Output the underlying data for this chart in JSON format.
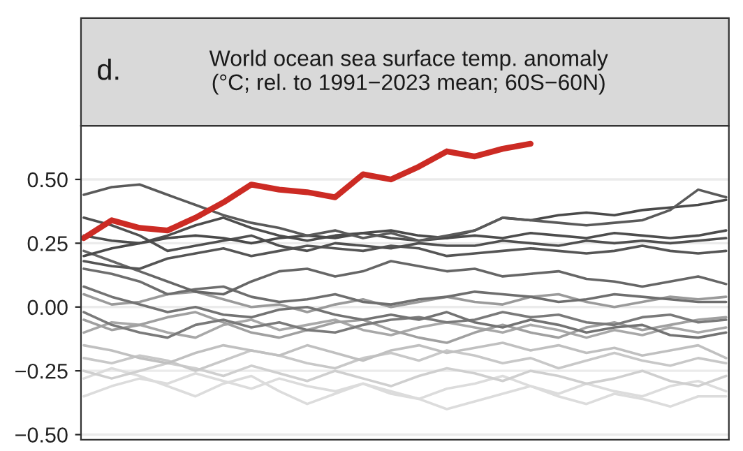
{
  "chart_data": {
    "type": "line",
    "title": "World ocean sea surface temp. anomaly\n(°C; rel. to 1991−2023 mean; 60S−60N)",
    "annotations": [
      "d."
    ],
    "categories": [
      null,
      null,
      null,
      null,
      null,
      null,
      null,
      null,
      null,
      null,
      null,
      null,
      null,
      null,
      null,
      null,
      null,
      null,
      null,
      null,
      null,
      null,
      null,
      null
    ],
    "ylim": [
      -0.52,
      0.71
    ],
    "yticks": [
      {
        "value": -0.5,
        "label": "−0.50"
      },
      {
        "value": -0.25,
        "label": "−0.25"
      },
      {
        "value": 0,
        "label": "0.00"
      },
      {
        "value": 0.25,
        "label": "0.25"
      },
      {
        "value": 0.5,
        "label": "0.50"
      }
    ],
    "grid": "y",
    "series": [
      {
        "color": "#dcdcdc",
        "values": [
          -0.35,
          -0.31,
          -0.28,
          -0.3,
          -0.26,
          -0.29,
          -0.32,
          -0.28,
          -0.31,
          -0.33,
          -0.3,
          -0.34,
          -0.36,
          -0.32,
          -0.3,
          -0.27,
          -0.31,
          -0.34,
          -0.3,
          -0.33,
          -0.35,
          -0.31,
          -0.29,
          -0.33
        ]
      },
      {
        "color": "#dcdcdc",
        "values": [
          -0.28,
          -0.24,
          -0.27,
          -0.31,
          -0.35,
          -0.3,
          -0.27,
          -0.33,
          -0.38,
          -0.34,
          -0.3,
          -0.33,
          -0.36,
          -0.4,
          -0.37,
          -0.34,
          -0.31,
          -0.35,
          -0.38,
          -0.34,
          -0.36,
          -0.39,
          -0.35,
          -0.35
        ]
      },
      {
        "color": "#cfcfcf",
        "values": [
          -0.25,
          -0.28,
          -0.25,
          -0.22,
          -0.24,
          -0.27,
          -0.23,
          -0.26,
          -0.29,
          -0.25,
          -0.28,
          -0.31,
          -0.27,
          -0.24,
          -0.26,
          -0.29,
          -0.25,
          -0.27,
          -0.3,
          -0.28,
          -0.25,
          -0.29,
          -0.31,
          -0.27
        ]
      },
      {
        "color": "#c8c8c8",
        "values": [
          -0.2,
          -0.22,
          -0.19,
          -0.21,
          -0.25,
          -0.21,
          -0.17,
          -0.19,
          -0.22,
          -0.24,
          -0.2,
          -0.18,
          -0.21,
          -0.17,
          -0.19,
          -0.22,
          -0.2,
          -0.24,
          -0.21,
          -0.18,
          -0.21,
          -0.23,
          -0.2,
          -0.22
        ]
      },
      {
        "color": "#c0c0c0",
        "values": [
          -0.15,
          -0.17,
          -0.2,
          -0.22,
          -0.18,
          -0.15,
          -0.17,
          -0.19,
          -0.15,
          -0.18,
          -0.21,
          -0.17,
          -0.15,
          -0.18,
          -0.16,
          -0.14,
          -0.17,
          -0.15,
          -0.18,
          -0.16,
          -0.19,
          -0.17,
          -0.15,
          -0.2
        ]
      },
      {
        "color": "#a8a8a8",
        "values": [
          -0.1,
          -0.06,
          -0.07,
          -0.1,
          -0.12,
          -0.07,
          -0.05,
          -0.09,
          -0.07,
          -0.05,
          -0.09,
          -0.11,
          -0.08,
          -0.06,
          -0.08,
          -0.1,
          -0.07,
          -0.09,
          -0.12,
          -0.09,
          -0.11,
          -0.08,
          -0.1,
          -0.08
        ]
      },
      {
        "color": "#a0a0a0",
        "values": [
          -0.05,
          -0.09,
          -0.07,
          -0.04,
          -0.02,
          -0.06,
          -0.1,
          -0.12,
          -0.09,
          -0.06,
          -0.05,
          -0.09,
          -0.12,
          -0.14,
          -0.1,
          -0.07,
          -0.1,
          -0.12,
          -0.08,
          -0.06,
          -0.09,
          -0.07,
          -0.05,
          -0.04
        ]
      },
      {
        "color": "#9a9a9a",
        "values": [
          0.05,
          0.01,
          0.02,
          0.05,
          0.06,
          0.03,
          0.0,
          0.01,
          -0.02,
          0.01,
          0.03,
          0.0,
          0.02,
          0.04,
          0.02,
          0.01,
          0.04,
          0.05,
          0.02,
          0.0,
          0.02,
          0.04,
          0.03,
          0.04
        ]
      },
      {
        "color": "#7a7a7a",
        "values": [
          -0.02,
          -0.07,
          -0.1,
          -0.12,
          -0.07,
          -0.05,
          -0.08,
          -0.06,
          -0.09,
          -0.1,
          -0.07,
          -0.05,
          -0.04,
          -0.06,
          -0.05,
          -0.02,
          -0.04,
          -0.03,
          -0.06,
          -0.07,
          -0.04,
          -0.03,
          -0.06,
          -0.05
        ]
      },
      {
        "color": "#737373",
        "values": [
          0.08,
          0.04,
          0.01,
          -0.02,
          0.0,
          -0.03,
          -0.04,
          -0.01,
          0.0,
          -0.03,
          -0.05,
          -0.03,
          -0.05,
          -0.02,
          -0.06,
          -0.08,
          -0.05,
          -0.07,
          -0.1,
          -0.08,
          -0.07,
          -0.11,
          -0.12,
          -0.1
        ]
      },
      {
        "color": "#6e6e6e",
        "values": [
          0.15,
          0.13,
          0.1,
          0.05,
          0.07,
          0.08,
          0.04,
          0.02,
          0.03,
          0.05,
          0.02,
          0.01,
          0.03,
          0.04,
          0.06,
          0.05,
          0.04,
          0.02,
          0.03,
          0.05,
          0.04,
          0.03,
          0.02,
          0.02
        ]
      },
      {
        "color": "#666666",
        "values": [
          0.22,
          0.18,
          0.14,
          0.1,
          0.06,
          0.05,
          0.1,
          0.14,
          0.15,
          0.12,
          0.14,
          0.18,
          0.16,
          0.14,
          0.15,
          0.12,
          0.13,
          0.14,
          0.11,
          0.1,
          0.08,
          0.1,
          0.12,
          0.09
        ]
      },
      {
        "color": "#555555",
        "values": [
          0.18,
          0.16,
          0.15,
          0.19,
          0.21,
          0.23,
          0.2,
          0.22,
          0.24,
          0.23,
          0.22,
          0.24,
          0.23,
          0.2,
          0.21,
          0.22,
          0.23,
          0.22,
          0.21,
          0.22,
          0.24,
          0.22,
          0.21,
          0.22
        ]
      },
      {
        "color": "#505050",
        "values": [
          0.35,
          0.32,
          0.28,
          0.22,
          0.24,
          0.26,
          0.28,
          0.24,
          0.22,
          0.25,
          0.24,
          0.23,
          0.25,
          0.24,
          0.24,
          0.26,
          0.25,
          0.24,
          0.26,
          0.25,
          0.26,
          0.25,
          0.26,
          0.27
        ]
      },
      {
        "color": "#4d4d4d",
        "values": [
          0.28,
          0.26,
          0.25,
          0.28,
          0.32,
          0.35,
          0.31,
          0.28,
          0.26,
          0.28,
          0.29,
          0.27,
          0.26,
          0.27,
          0.28,
          0.27,
          0.29,
          0.28,
          0.27,
          0.29,
          0.28,
          0.27,
          0.28,
          0.3
        ]
      },
      {
        "color": "#4a4a4a",
        "values": [
          0.2,
          0.23,
          0.25,
          0.27,
          0.28,
          0.27,
          0.25,
          0.27,
          0.28,
          0.27,
          0.29,
          0.3,
          0.28,
          0.27,
          0.3,
          0.35,
          0.34,
          0.36,
          0.37,
          0.36,
          0.38,
          0.39,
          0.4,
          0.42
        ]
      },
      {
        "color": "#5a5a5a",
        "values": [
          0.44,
          0.47,
          0.48,
          0.44,
          0.4,
          0.36,
          0.33,
          0.31,
          0.28,
          0.3,
          0.27,
          0.29,
          0.26,
          0.28,
          0.3,
          0.35,
          0.34,
          0.33,
          0.32,
          0.33,
          0.34,
          0.38,
          0.46,
          0.43
        ]
      },
      {
        "color": "#cc2b24",
        "values": [
          0.27,
          0.34,
          0.31,
          0.3,
          0.35,
          0.41,
          0.48,
          0.46,
          0.45,
          0.43,
          0.52,
          0.5,
          0.55,
          0.61,
          0.59,
          0.62,
          0.64,
          null,
          null,
          null,
          null,
          null,
          null,
          null
        ]
      }
    ]
  }
}
